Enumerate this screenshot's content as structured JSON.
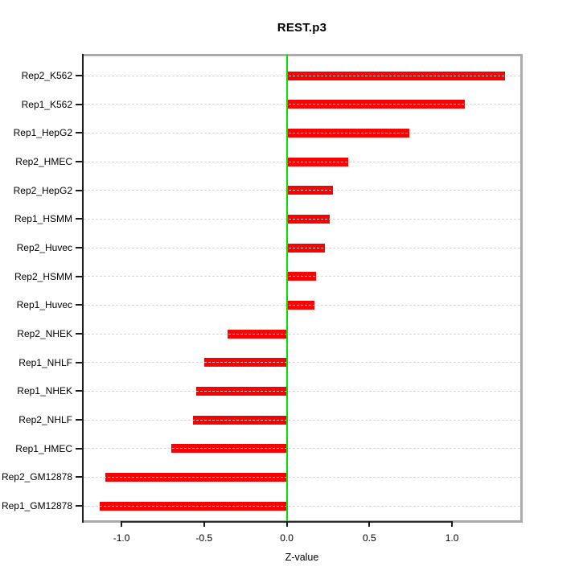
{
  "chart_data": {
    "type": "bar",
    "orientation": "horizontal",
    "title": "REST.p3",
    "xlabel": "Z-value",
    "grid": "dashed-horizontal-per-category",
    "legend": "none",
    "xlim": [
      -1.234,
      1.418
    ],
    "xticks": [
      -1.0,
      -0.5,
      0.0,
      0.5,
      1.0
    ],
    "xtick_labels": [
      "-1.0",
      "-0.5",
      "0.0",
      "0.5",
      "1.0"
    ],
    "zero_reference_line": 0.0,
    "series": [
      {
        "label": "Rep2_K562",
        "value": 1.32
      },
      {
        "label": "Rep1_K562",
        "value": 1.08
      },
      {
        "label": "Rep1_HepG2",
        "value": 0.74
      },
      {
        "label": "Rep2_HMEC",
        "value": 0.37
      },
      {
        "label": "Rep2_HepG2",
        "value": 0.28
      },
      {
        "label": "Rep1_HSMM",
        "value": 0.26
      },
      {
        "label": "Rep2_Huvec",
        "value": 0.23
      },
      {
        "label": "Rep2_HSMM",
        "value": 0.175
      },
      {
        "label": "Rep1_Huvec",
        "value": 0.17
      },
      {
        "label": "Rep2_NHEK",
        "value": -0.36
      },
      {
        "label": "Rep1_NHLF",
        "value": -0.5
      },
      {
        "label": "Rep1_NHEK",
        "value": -0.55
      },
      {
        "label": "Rep2_NHLF",
        "value": -0.57
      },
      {
        "label": "Rep1_HMEC",
        "value": -0.7
      },
      {
        "label": "Rep2_GM12878",
        "value": -1.1
      },
      {
        "label": "Rep1_GM12878",
        "value": -1.13
      }
    ],
    "colors": {
      "bar": "#fb0000",
      "zero_line": "#00e400",
      "grid": "#d5d5d5",
      "box_border": "#ababab",
      "axis": "#1b1b1b",
      "text": "#000000",
      "background": "#ffffff"
    }
  }
}
